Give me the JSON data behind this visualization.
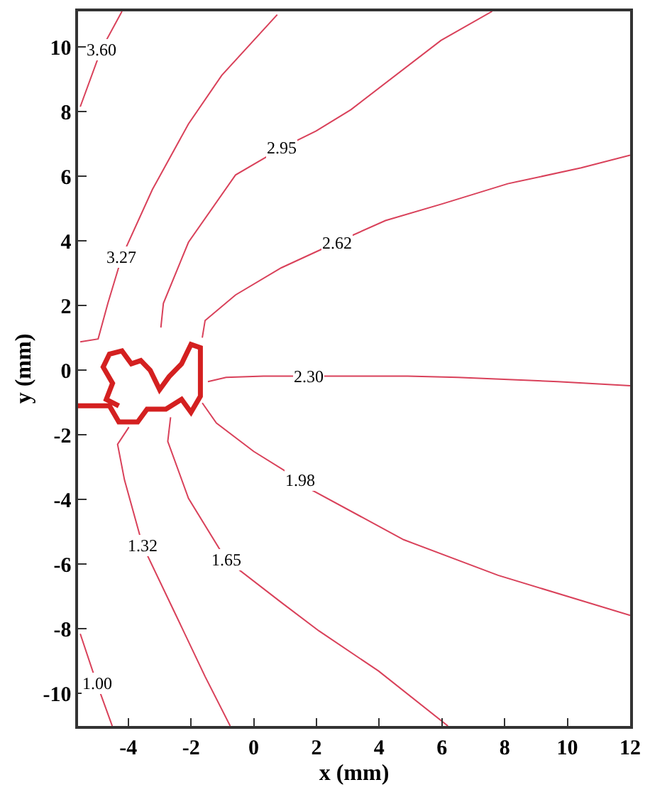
{
  "chart_data": {
    "type": "line",
    "xlabel": "x (mm)",
    "ylabel": "y (mm)",
    "xlim": [
      -5.6,
      12
    ],
    "ylim": [
      -11,
      11.1
    ],
    "xticks": [
      -4,
      -2,
      0,
      2,
      4,
      6,
      8,
      10,
      12
    ],
    "yticks": [
      -10,
      -8,
      -6,
      -4,
      -2,
      0,
      2,
      4,
      6,
      8,
      10
    ],
    "grid": false,
    "legend": false,
    "marker": "none",
    "line_style": "solid",
    "series": [
      {
        "name": "3.60",
        "color": "#d9415a",
        "x": [
          -5.53,
          -4.87,
          -4.2
        ],
        "values": [
          8.15,
          9.9,
          11.1
        ]
      },
      {
        "name": "3.27",
        "color": "#d9415a",
        "x": [
          -5.53,
          -4.96,
          -4.65,
          -4.2,
          -3.23,
          -2.08,
          -1.02,
          0.75
        ],
        "values": [
          0.88,
          0.97,
          2.07,
          3.52,
          5.59,
          7.62,
          9.12,
          11.0
        ]
      },
      {
        "name": "2.95",
        "color": "#d9415a",
        "x": [
          -2.96,
          -2.88,
          -2.08,
          -0.58,
          0.88,
          1.99,
          3.1,
          5.97,
          7.6
        ],
        "values": [
          1.32,
          2.07,
          3.96,
          6.04,
          6.87,
          7.4,
          8.06,
          10.2,
          11.1
        ]
      },
      {
        "name": "2.62",
        "color": "#d9415a",
        "x": [
          -1.64,
          -1.55,
          -0.58,
          0.88,
          2.65,
          4.2,
          6.02,
          8.1,
          10.44,
          12
        ],
        "values": [
          1.01,
          1.54,
          2.33,
          3.17,
          3.96,
          4.63,
          5.15,
          5.77,
          6.26,
          6.65
        ]
      },
      {
        "name": "2.30",
        "color": "#d9415a",
        "x": [
          -1.46,
          -0.88,
          0.31,
          1.77,
          4.91,
          6.5,
          9.69,
          12
        ],
        "values": [
          -0.35,
          -0.22,
          -0.18,
          -0.18,
          -0.18,
          -0.22,
          -0.35,
          -0.48
        ]
      },
      {
        "name": "1.98",
        "color": "#d9415a",
        "x": [
          -1.64,
          -1.19,
          0,
          1.46,
          1.77,
          4.78,
          7.79,
          12
        ],
        "values": [
          -1.01,
          -1.63,
          -2.51,
          -3.39,
          -3.66,
          -5.24,
          -6.34,
          -7.58
        ]
      },
      {
        "name": "1.65",
        "color": "#d9415a",
        "x": [
          -2.65,
          -2.74,
          -2.08,
          -0.88,
          0.88,
          2.08,
          3.98,
          6.19
        ],
        "values": [
          -1.45,
          -2.2,
          -3.96,
          -5.86,
          -7.18,
          -8.06,
          -9.3,
          -11
        ]
      },
      {
        "name": "1.32",
        "color": "#d9415a",
        "x": [
          -3.98,
          -4.34,
          -4.12,
          -3.54,
          -2.52,
          -1.55,
          -0.75
        ],
        "values": [
          -1.76,
          -2.29,
          -3.39,
          -5.42,
          -7.49,
          -9.47,
          -11
        ]
      },
      {
        "name": "1.00",
        "color": "#d9415a",
        "x": [
          -5.53,
          -5.0,
          -4.51
        ],
        "values": [
          -8.15,
          -9.69,
          -11
        ]
      },
      {
        "color": "#d42020",
        "x": [
          -5.6,
          -4.6,
          -4.3,
          -3.7,
          -3.4,
          -2.8,
          -2.3,
          -2.0,
          -1.7,
          -1.7,
          -2.0,
          -2.3,
          -2.7,
          -3.0,
          -3.3,
          -3.6,
          -3.9,
          -4.2,
          -4.6,
          -4.8,
          -4.5,
          -4.7,
          -4.3
        ],
        "values": [
          -1.1,
          -1.1,
          -1.6,
          -1.6,
          -1.2,
          -1.2,
          -0.9,
          -1.3,
          -0.8,
          0.7,
          0.8,
          0.2,
          -0.2,
          -0.6,
          0.0,
          0.3,
          0.2,
          0.6,
          0.5,
          0.1,
          -0.4,
          -0.9,
          -1.1
        ]
      }
    ]
  }
}
